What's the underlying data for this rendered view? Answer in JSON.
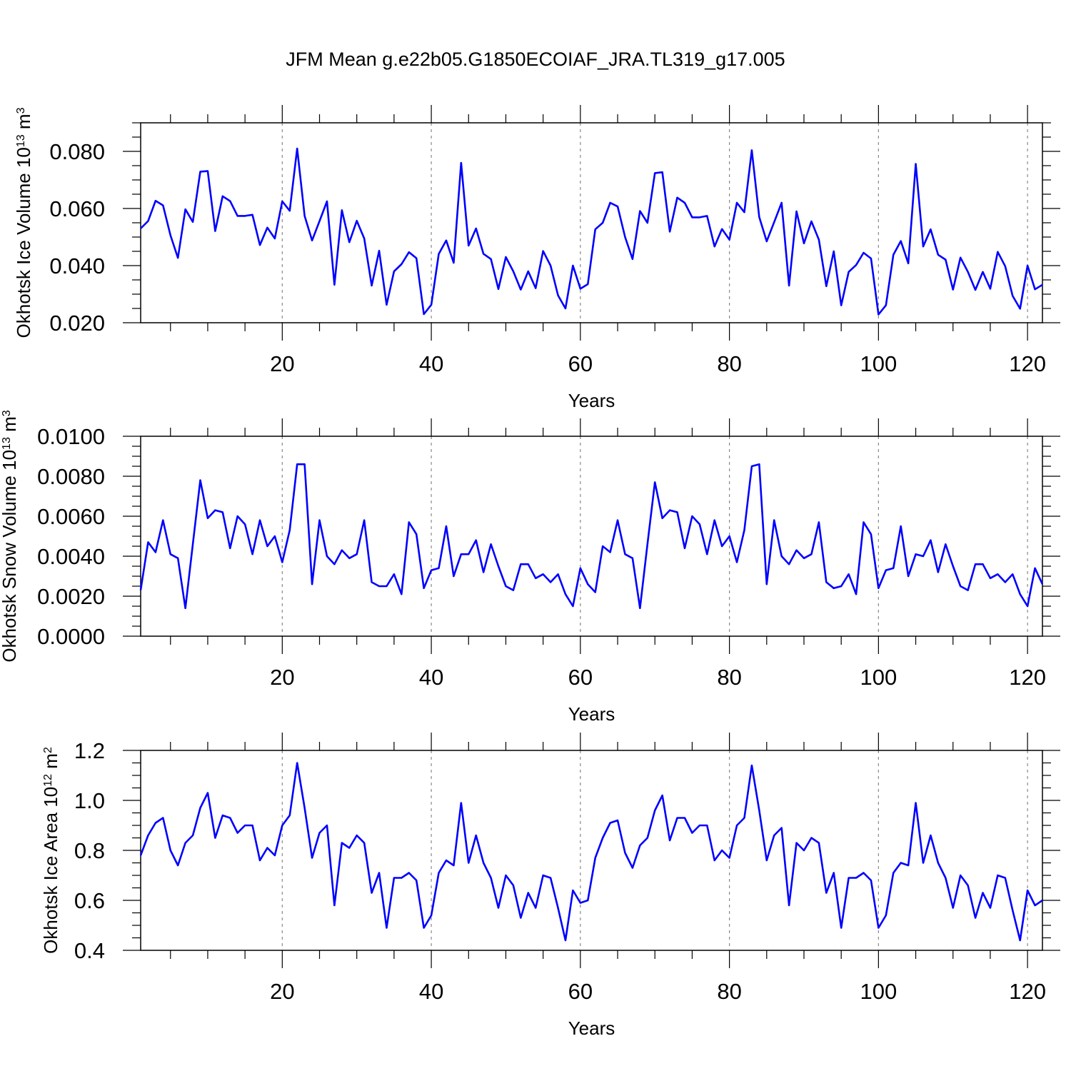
{
  "title": "JFM Mean g.e22b05.G1850ECOIAF_JRA.TL319_g17.005",
  "line_color": "#0000ff",
  "chart_data": [
    {
      "type": "line",
      "ylabel": "Okhotsk Ice Volume 10",
      "ylabel_exp": "13",
      "ylabel_unit": " m",
      "ylabel_unit_exp": "3",
      "xlabel": "Years",
      "xlim": [
        1,
        122
      ],
      "ylim": [
        0.02,
        0.09
      ],
      "yticks": [
        "0.020",
        "0.040",
        "0.060",
        "0.080"
      ],
      "ytick_values": [
        0.02,
        0.04,
        0.06,
        0.08
      ],
      "xticks": [
        "20",
        "40",
        "60",
        "80",
        "100",
        "120"
      ],
      "xtick_values": [
        20,
        40,
        60,
        80,
        100,
        120
      ],
      "grid": "vertical dashed at major x ticks",
      "series": [
        {
          "values": [
            0.053,
            0.0556,
            0.0627,
            0.0611,
            0.0506,
            0.0427,
            0.0597,
            0.0553,
            0.0729,
            0.0731,
            0.0521,
            0.0643,
            0.0626,
            0.0574,
            0.0574,
            0.0578,
            0.0472,
            0.0533,
            0.0495,
            0.0625,
            0.0592,
            0.081,
            0.0574,
            0.0488,
            0.0556,
            0.0625,
            0.0333,
            0.0594,
            0.0482,
            0.0557,
            0.0495,
            0.033,
            0.0452,
            0.0263,
            0.038,
            0.0405,
            0.0447,
            0.0426,
            0.023,
            0.0263,
            0.0441,
            0.0488,
            0.041,
            0.076,
            0.047,
            0.053,
            0.0441,
            0.0423,
            0.0318,
            0.043,
            0.038,
            0.0316,
            0.038,
            0.0321,
            0.0451,
            0.04,
            0.0296,
            0.025,
            0.04,
            0.0319,
            0.0335,
            0.0527,
            0.055,
            0.062,
            0.0607,
            0.05,
            0.0423,
            0.0591,
            0.055,
            0.0724,
            0.0727,
            0.0519,
            0.0638,
            0.062,
            0.0569,
            0.0569,
            0.0574,
            0.0467,
            0.0528,
            0.0491,
            0.062,
            0.0587,
            0.0804,
            0.057,
            0.0485,
            0.0552,
            0.062,
            0.033,
            0.059,
            0.0478,
            0.0555,
            0.0491,
            0.0328,
            0.045,
            0.0261,
            0.0378,
            0.0402,
            0.0445,
            0.0425,
            0.0229,
            0.0261,
            0.0438,
            0.0486,
            0.0408,
            0.0756,
            0.0467,
            0.0527,
            0.0438,
            0.0421,
            0.0316,
            0.0428,
            0.0378,
            0.0315,
            0.0378,
            0.0319,
            0.0448,
            0.0398,
            0.0294,
            0.0249,
            0.04,
            0.0317,
            0.0333
          ]
        }
      ]
    },
    {
      "type": "line",
      "ylabel": "Okhotsk Snow Volume 10",
      "ylabel_exp": "13",
      "ylabel_unit": " m",
      "ylabel_unit_exp": "3",
      "xlabel": "Years",
      "xlim": [
        1,
        122
      ],
      "ylim": [
        0.0,
        0.01
      ],
      "yticks": [
        "0.0000",
        "0.0020",
        "0.0040",
        "0.0060",
        "0.0080",
        "0.0100"
      ],
      "ytick_values": [
        0.0,
        0.002,
        0.004,
        0.006,
        0.008,
        0.01
      ],
      "xticks": [
        "20",
        "40",
        "60",
        "80",
        "100",
        "120"
      ],
      "xtick_values": [
        20,
        40,
        60,
        80,
        100,
        120
      ],
      "grid": "vertical dashed at major x ticks",
      "series": [
        {
          "values": [
            0.0023,
            0.0047,
            0.0042,
            0.0058,
            0.0041,
            0.0039,
            0.0014,
            0.0046,
            0.0078,
            0.0059,
            0.0063,
            0.0062,
            0.0044,
            0.006,
            0.0056,
            0.0041,
            0.0058,
            0.0045,
            0.005,
            0.0037,
            0.0053,
            0.0086,
            0.0086,
            0.0026,
            0.0058,
            0.004,
            0.0036,
            0.0043,
            0.0039,
            0.0041,
            0.0058,
            0.0027,
            0.0025,
            0.0025,
            0.0031,
            0.0021,
            0.0057,
            0.0051,
            0.0024,
            0.0033,
            0.0034,
            0.0055,
            0.003,
            0.0041,
            0.0041,
            0.0048,
            0.0032,
            0.0046,
            0.0035,
            0.0025,
            0.0023,
            0.0036,
            0.0036,
            0.0029,
            0.0031,
            0.0027,
            0.0031,
            0.0021,
            0.0015,
            0.0034,
            0.0026,
            0.0022,
            0.0045,
            0.0042,
            0.0058,
            0.0041,
            0.0039,
            0.0014,
            0.0046,
            0.0077,
            0.0059,
            0.0063,
            0.0062,
            0.0044,
            0.006,
            0.0056,
            0.0041,
            0.0058,
            0.0045,
            0.005,
            0.0037,
            0.0053,
            0.0085,
            0.0086,
            0.0026,
            0.0058,
            0.004,
            0.0036,
            0.0043,
            0.0039,
            0.0041,
            0.0057,
            0.0027,
            0.0024,
            0.0025,
            0.0031,
            0.0021,
            0.0057,
            0.0051,
            0.0024,
            0.0033,
            0.0034,
            0.0055,
            0.003,
            0.0041,
            0.004,
            0.0048,
            0.0032,
            0.0046,
            0.0035,
            0.0025,
            0.0023,
            0.0036,
            0.0036,
            0.0029,
            0.0031,
            0.0027,
            0.0031,
            0.0021,
            0.0015,
            0.0034,
            0.0026
          ]
        }
      ]
    },
    {
      "type": "line",
      "ylabel": "Okhotsk Ice Area 10",
      "ylabel_exp": "12",
      "ylabel_unit": " m",
      "ylabel_unit_exp": "2",
      "xlabel": "Years",
      "xlim": [
        1,
        122
      ],
      "ylim": [
        0.4,
        1.2
      ],
      "yticks": [
        "0.4",
        "0.6",
        "0.8",
        "1.0",
        "1.2"
      ],
      "ytick_values": [
        0.4,
        0.6,
        0.8,
        1.0,
        1.2
      ],
      "xticks": [
        "20",
        "40",
        "60",
        "80",
        "100",
        "120"
      ],
      "xtick_values": [
        20,
        40,
        60,
        80,
        100,
        120
      ],
      "grid": "vertical dashed at major x ticks",
      "series": [
        {
          "values": [
            0.78,
            0.86,
            0.91,
            0.93,
            0.8,
            0.74,
            0.83,
            0.86,
            0.97,
            1.03,
            0.85,
            0.94,
            0.93,
            0.87,
            0.9,
            0.9,
            0.76,
            0.81,
            0.78,
            0.9,
            0.94,
            1.15,
            0.97,
            0.77,
            0.87,
            0.9,
            0.58,
            0.83,
            0.81,
            0.86,
            0.83,
            0.63,
            0.71,
            0.49,
            0.69,
            0.69,
            0.71,
            0.68,
            0.49,
            0.54,
            0.71,
            0.76,
            0.74,
            0.99,
            0.75,
            0.86,
            0.75,
            0.69,
            0.57,
            0.7,
            0.66,
            0.53,
            0.63,
            0.57,
            0.7,
            0.69,
            0.57,
            0.44,
            0.64,
            0.59,
            0.6,
            0.77,
            0.85,
            0.91,
            0.92,
            0.79,
            0.73,
            0.82,
            0.85,
            0.96,
            1.02,
            0.84,
            0.93,
            0.93,
            0.87,
            0.9,
            0.9,
            0.76,
            0.8,
            0.77,
            0.9,
            0.93,
            1.14,
            0.96,
            0.76,
            0.86,
            0.89,
            0.58,
            0.83,
            0.8,
            0.85,
            0.83,
            0.63,
            0.71,
            0.49,
            0.69,
            0.69,
            0.71,
            0.68,
            0.49,
            0.54,
            0.71,
            0.75,
            0.74,
            0.99,
            0.75,
            0.86,
            0.75,
            0.69,
            0.57,
            0.7,
            0.66,
            0.53,
            0.63,
            0.57,
            0.7,
            0.69,
            0.56,
            0.44,
            0.64,
            0.58,
            0.6
          ]
        }
      ]
    }
  ]
}
